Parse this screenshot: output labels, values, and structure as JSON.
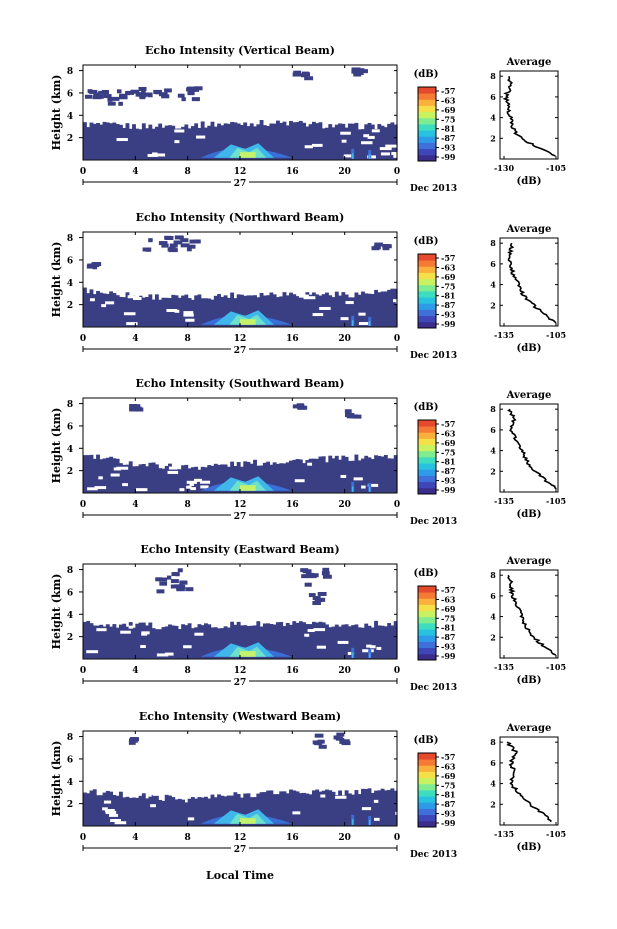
{
  "figure": {
    "xlabel": "Local Time",
    "x_ticks": [
      "0",
      "4",
      "8",
      "12",
      "16",
      "20",
      "0"
    ],
    "day_label": "27",
    "month_label": "Dec 2013",
    "y_ticks": [
      "2",
      "4",
      "6",
      "8"
    ],
    "ylabel": "Height (km)",
    "colorbar_unit": "(dB)",
    "colorbar_ticks": [
      "-57",
      "-63",
      "-69",
      "-75",
      "-81",
      "-87",
      "-93",
      "-99"
    ],
    "colorbar_colors": [
      "#3a2d8c",
      "#3f47b8",
      "#3f6fd8",
      "#2e9be8",
      "#28c2e0",
      "#3fddc0",
      "#7fec8f",
      "#c8f25f",
      "#f5e04a",
      "#f9b13c",
      "#f57a34",
      "#e54a2c"
    ],
    "avg_title": "Average",
    "avg_xlabel": "(dB)",
    "avg_y_ticks": [
      "2",
      "4",
      "6",
      "8"
    ],
    "background_color": "#3a3f84",
    "highlight_colors": [
      "#3a6fd8",
      "#40b7ea",
      "#6fe0c9",
      "#c5f26a"
    ]
  },
  "chart_data": [
    {
      "type": "heatmap",
      "title": "Echo Intensity (Vertical Beam)",
      "avg_x_ticks": [
        "-130",
        "-105"
      ],
      "x_hours": [
        0,
        24
      ],
      "ylim_km": [
        0,
        8.5
      ],
      "cloud_top_km": [
        [
          0,
          3.2
        ],
        [
          4,
          3.0
        ],
        [
          8,
          3.1
        ],
        [
          12,
          3.3
        ],
        [
          16,
          3.3
        ],
        [
          20,
          3.0
        ],
        [
          24,
          3.1
        ]
      ],
      "upper_patches_km": [
        [
          0,
          4,
          5.2,
          6.4
        ],
        [
          4,
          8.5,
          5.4,
          6.6
        ],
        [
          16,
          17,
          7.4,
          8.0
        ],
        [
          20.5,
          21.5,
          7.8,
          8.3
        ]
      ],
      "avg_profile": {
        "height_km": [
          0.3,
          1,
          2,
          3,
          4,
          5,
          6,
          7,
          8
        ],
        "value_db": [
          -106,
          -112,
          -122,
          -126,
          -127,
          -128,
          -129,
          -127,
          -128
        ]
      }
    },
    {
      "type": "heatmap",
      "title": "Echo Intensity (Northward Beam)",
      "avg_x_ticks": [
        "-135",
        "-105"
      ],
      "x_hours": [
        0,
        24
      ],
      "ylim_km": [
        0,
        8.5
      ],
      "cloud_top_km": [
        [
          0,
          3.3
        ],
        [
          4,
          2.8
        ],
        [
          8,
          2.6
        ],
        [
          12,
          2.9
        ],
        [
          16,
          3.0
        ],
        [
          20,
          2.9
        ],
        [
          24,
          3.2
        ]
      ],
      "upper_patches_km": [
        [
          4.5,
          8.5,
          7.0,
          8.3
        ],
        [
          0,
          1,
          5.4,
          6.0
        ],
        [
          22,
          23,
          7.2,
          7.6
        ]
      ],
      "avg_profile": {
        "height_km": [
          0.3,
          1,
          2,
          3,
          4,
          5,
          6,
          7,
          8
        ],
        "value_db": [
          -106,
          -110,
          -118,
          -124,
          -126,
          -130,
          -131,
          -132,
          -130
        ]
      }
    },
    {
      "type": "heatmap",
      "title": "Echo Intensity (Southward Beam)",
      "avg_x_ticks": [
        "-135",
        "-105"
      ],
      "x_hours": [
        0,
        24
      ],
      "ylim_km": [
        0,
        8.5
      ],
      "cloud_top_km": [
        [
          0,
          3.4
        ],
        [
          4,
          2.6
        ],
        [
          8,
          2.3
        ],
        [
          12,
          2.6
        ],
        [
          16,
          2.9
        ],
        [
          20,
          3.1
        ],
        [
          24,
          3.3
        ]
      ],
      "upper_patches_km": [
        [
          3.5,
          4,
          7.6,
          8.0
        ],
        [
          16,
          16.5,
          7.8,
          8.1
        ],
        [
          20,
          21,
          7.0,
          7.6
        ]
      ],
      "avg_profile": {
        "height_km": [
          0.3,
          1,
          2,
          3,
          4,
          5,
          6,
          7,
          8
        ],
        "value_db": [
          -105,
          -110,
          -117,
          -122,
          -124,
          -128,
          -131,
          -129,
          -132
        ]
      }
    },
    {
      "type": "heatmap",
      "title": "Echo Intensity (Eastward Beam)",
      "avg_x_ticks": [
        "-135",
        "-105"
      ],
      "x_hours": [
        0,
        24
      ],
      "ylim_km": [
        0,
        8.5
      ],
      "cloud_top_km": [
        [
          0,
          3.2
        ],
        [
          4,
          3.0
        ],
        [
          8,
          2.9
        ],
        [
          12,
          3.1
        ],
        [
          16,
          3.1
        ],
        [
          20,
          3.0
        ],
        [
          24,
          3.2
        ]
      ],
      "upper_patches_km": [
        [
          4.5,
          8,
          6.2,
          8.3
        ],
        [
          16.5,
          18.5,
          6.8,
          8.3
        ],
        [
          17,
          18,
          5.0,
          6.0
        ]
      ],
      "avg_profile": {
        "height_km": [
          0.3,
          1,
          2,
          3,
          4,
          5,
          6,
          7,
          8
        ],
        "value_db": [
          -106,
          -111,
          -118,
          -122,
          -125,
          -127,
          -130,
          -131,
          -132
        ]
      }
    },
    {
      "type": "heatmap",
      "title": "Echo Intensity (Westward Beam)",
      "avg_x_ticks": [
        "-135",
        "-105"
      ],
      "x_hours": [
        0,
        24
      ],
      "ylim_km": [
        0,
        8.5
      ],
      "cloud_top_km": [
        [
          0,
          3.1
        ],
        [
          4,
          2.7
        ],
        [
          8,
          2.4
        ],
        [
          12,
          2.8
        ],
        [
          16,
          3.1
        ],
        [
          20,
          3.0
        ],
        [
          24,
          3.3
        ]
      ],
      "upper_patches_km": [
        [
          17.5,
          20,
          7.2,
          8.4
        ],
        [
          3.5,
          4,
          7.6,
          8.0
        ]
      ],
      "avg_profile": {
        "height_km": [
          0.3,
          1,
          2,
          3,
          4,
          5,
          6,
          7,
          8
        ],
        "value_db": [
          -107,
          -112,
          -120,
          -126,
          -131,
          -129,
          -131,
          -128,
          -133
        ]
      }
    }
  ]
}
